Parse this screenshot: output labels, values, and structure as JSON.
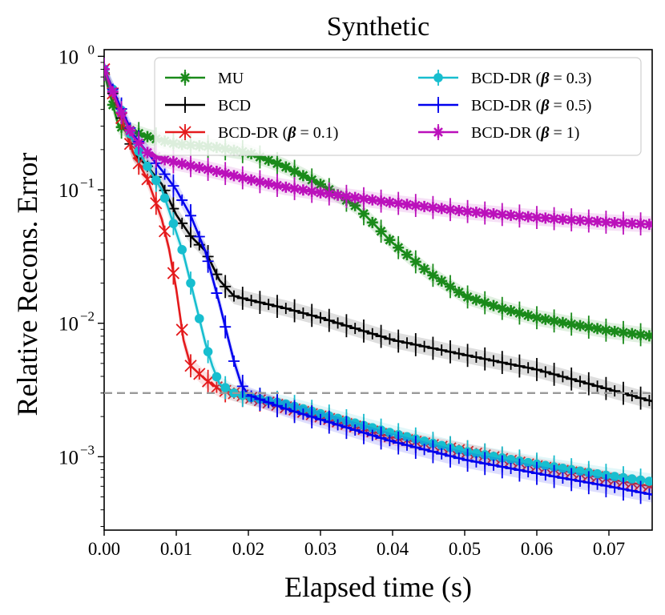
{
  "chart_data": {
    "type": "line",
    "title": "Synthetic",
    "xlabel": "Elapsed time (s)",
    "ylabel": "Relative Recons. Error",
    "xlim": [
      0.0,
      0.076
    ],
    "ylim_log10": [
      -3.55,
      0.05
    ],
    "y_scale": "log",
    "x_ticks": [
      "0.00",
      "0.01",
      "0.02",
      "0.03",
      "0.04",
      "0.05",
      "0.06",
      "0.07"
    ],
    "x_tick_values": [
      0.0,
      0.01,
      0.02,
      0.03,
      0.04,
      0.05,
      0.06,
      0.07
    ],
    "y_ticks": [
      {
        "base": "10",
        "exp": "0",
        "log": 0
      },
      {
        "base": "10",
        "exp": "−1",
        "log": -1
      },
      {
        "base": "10",
        "exp": "−2",
        "log": -2
      },
      {
        "base": "10",
        "exp": "−3",
        "log": -3
      }
    ],
    "reference_line": {
      "y": 0.003,
      "style": "dashed",
      "color": "#999999"
    },
    "legend_position": "top-right",
    "series": [
      {
        "name": "MU",
        "legend": [
          "MU"
        ],
        "color": "#1a8a1a",
        "marker": "star",
        "x": [
          0.0,
          0.002,
          0.006,
          0.01,
          0.015,
          0.02,
          0.025,
          0.03,
          0.035,
          0.04,
          0.045,
          0.05,
          0.055,
          0.06,
          0.065,
          0.07,
          0.076
        ],
        "y": [
          0.75,
          0.3,
          0.25,
          0.22,
          0.21,
          0.19,
          0.15,
          0.11,
          0.075,
          0.04,
          0.024,
          0.016,
          0.013,
          0.011,
          0.0098,
          0.0088,
          0.008
        ]
      },
      {
        "name": "BCD",
        "legend": [
          "BCD"
        ],
        "color": "#000000",
        "marker": "plus",
        "x": [
          0.0,
          0.002,
          0.004,
          0.006,
          0.008,
          0.01,
          0.012,
          0.014,
          0.016,
          0.018,
          0.02,
          0.025,
          0.03,
          0.04,
          0.05,
          0.06,
          0.07,
          0.076
        ],
        "y": [
          0.8,
          0.4,
          0.19,
          0.15,
          0.11,
          0.065,
          0.045,
          0.035,
          0.021,
          0.016,
          0.015,
          0.013,
          0.011,
          0.0075,
          0.0058,
          0.0045,
          0.0032,
          0.0026
        ]
      },
      {
        "name": "BCD-DR (β = 0.1)",
        "legend": [
          "BCD-DR (",
          "β",
          " = 0.1)"
        ],
        "color": "#e41a1c",
        "marker": "x",
        "x": [
          0.0,
          0.002,
          0.004,
          0.006,
          0.008,
          0.009,
          0.01,
          0.011,
          0.012,
          0.014,
          0.016,
          0.02,
          0.03,
          0.04,
          0.05,
          0.06,
          0.07,
          0.076
        ],
        "y": [
          0.8,
          0.4,
          0.19,
          0.12,
          0.06,
          0.036,
          0.018,
          0.0075,
          0.0048,
          0.0038,
          0.0032,
          0.0028,
          0.002,
          0.0014,
          0.0011,
          0.00085,
          0.00068,
          0.0006
        ]
      },
      {
        "name": "BCD-DR (β = 0.3)",
        "legend": [
          "BCD-DR (",
          "β",
          " = 0.3)"
        ],
        "color": "#17becf",
        "marker": "circle",
        "x": [
          0.0,
          0.002,
          0.004,
          0.006,
          0.008,
          0.009,
          0.01,
          0.011,
          0.012,
          0.013,
          0.014,
          0.015,
          0.016,
          0.018,
          0.02,
          0.025,
          0.03,
          0.04,
          0.05,
          0.06,
          0.07,
          0.076
        ],
        "y": [
          0.8,
          0.45,
          0.23,
          0.15,
          0.1,
          0.07,
          0.048,
          0.033,
          0.02,
          0.012,
          0.0072,
          0.0048,
          0.0035,
          0.003,
          0.0028,
          0.0025,
          0.0021,
          0.0015,
          0.0011,
          0.00088,
          0.00072,
          0.00065
        ]
      },
      {
        "name": "BCD-DR (β = 0.5)",
        "legend": [
          "BCD-DR (",
          "β",
          " = 0.5)"
        ],
        "color": "#0000ee",
        "marker": "plus",
        "x": [
          0.0,
          0.002,
          0.004,
          0.006,
          0.008,
          0.01,
          0.012,
          0.014,
          0.016,
          0.017,
          0.018,
          0.019,
          0.02,
          0.025,
          0.03,
          0.04,
          0.05,
          0.06,
          0.07,
          0.076
        ],
        "y": [
          0.8,
          0.45,
          0.26,
          0.19,
          0.14,
          0.1,
          0.064,
          0.035,
          0.014,
          0.0085,
          0.0052,
          0.0035,
          0.0029,
          0.0023,
          0.0019,
          0.0013,
          0.00095,
          0.00075,
          0.0006,
          0.00052
        ]
      },
      {
        "name": "BCD-DR (β = 1)",
        "legend": [
          "BCD-DR (",
          "β",
          " = 1)"
        ],
        "color": "#bb10bb",
        "marker": "star",
        "x": [
          0.0,
          0.002,
          0.004,
          0.006,
          0.008,
          0.01,
          0.015,
          0.02,
          0.025,
          0.03,
          0.04,
          0.05,
          0.06,
          0.07,
          0.076
        ],
        "y": [
          0.8,
          0.42,
          0.25,
          0.19,
          0.17,
          0.16,
          0.14,
          0.12,
          0.105,
          0.095,
          0.08,
          0.069,
          0.062,
          0.057,
          0.055
        ]
      }
    ]
  }
}
